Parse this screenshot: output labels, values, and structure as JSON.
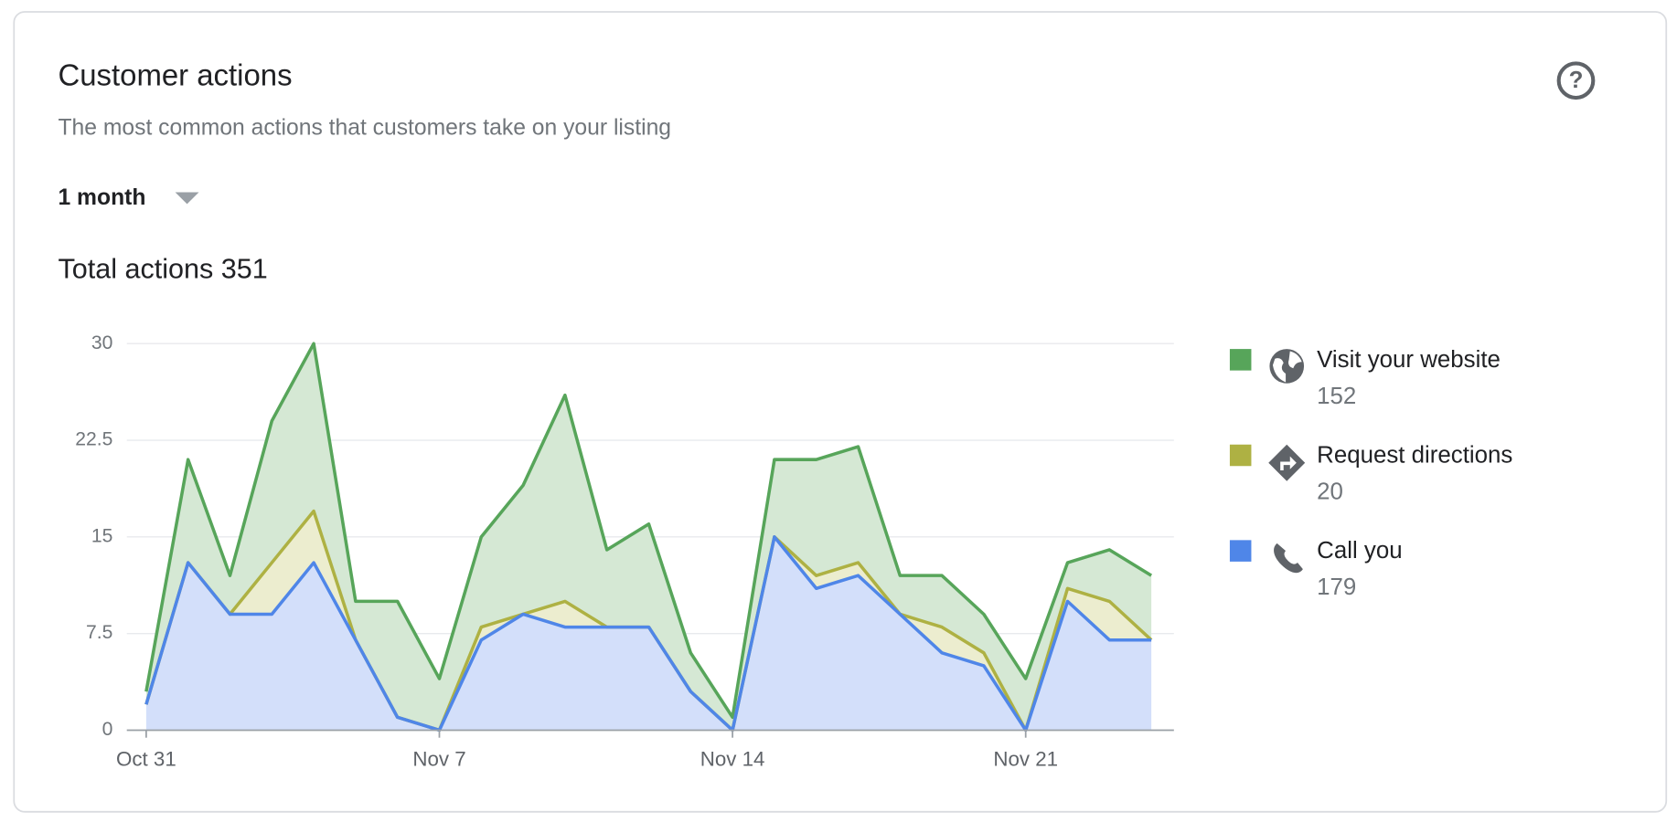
{
  "header": {
    "title": "Customer actions",
    "subtitle": "The most common actions that customers take on your listing",
    "period": "1 month",
    "total_label": "Total actions",
    "total": 351
  },
  "chart_data": {
    "type": "stacked_area",
    "categories": [
      "Oct 31",
      null,
      null,
      null,
      null,
      null,
      null,
      "Nov 7",
      null,
      null,
      null,
      null,
      null,
      null,
      "Nov 14",
      null,
      null,
      null,
      null,
      null,
      null,
      "Nov 21",
      null,
      null,
      null
    ],
    "series": [
      {
        "name": "Visit your website",
        "color": "#57a55a",
        "fill": "#d5e8d4",
        "total": 152,
        "values": [
          1,
          8,
          3,
          11,
          13,
          3,
          9,
          4,
          7,
          10,
          16,
          6,
          8,
          3,
          1,
          6,
          9,
          9,
          3,
          4,
          3,
          4,
          2,
          4,
          5
        ]
      },
      {
        "name": "Request directions",
        "color": "#aeb143",
        "fill": "#ecedcf",
        "total": 20,
        "values": [
          0,
          0,
          0,
          4,
          4,
          0,
          0,
          0,
          1,
          0,
          2,
          0,
          0,
          0,
          0,
          0,
          1,
          1,
          0,
          2,
          1,
          0,
          1,
          3,
          0
        ]
      },
      {
        "name": "Call you",
        "color": "#4f86e8",
        "fill": "#d3dffa",
        "total": 179,
        "values": [
          2,
          13,
          9,
          9,
          13,
          7,
          1,
          0,
          7,
          9,
          8,
          8,
          8,
          3,
          0,
          15,
          11,
          12,
          9,
          6,
          5,
          0,
          10,
          7,
          7
        ]
      }
    ],
    "ylim": [
      0,
      30
    ],
    "yticks": [
      0,
      7.5,
      15,
      22.5,
      30
    ],
    "grid": true,
    "legend": "right"
  }
}
